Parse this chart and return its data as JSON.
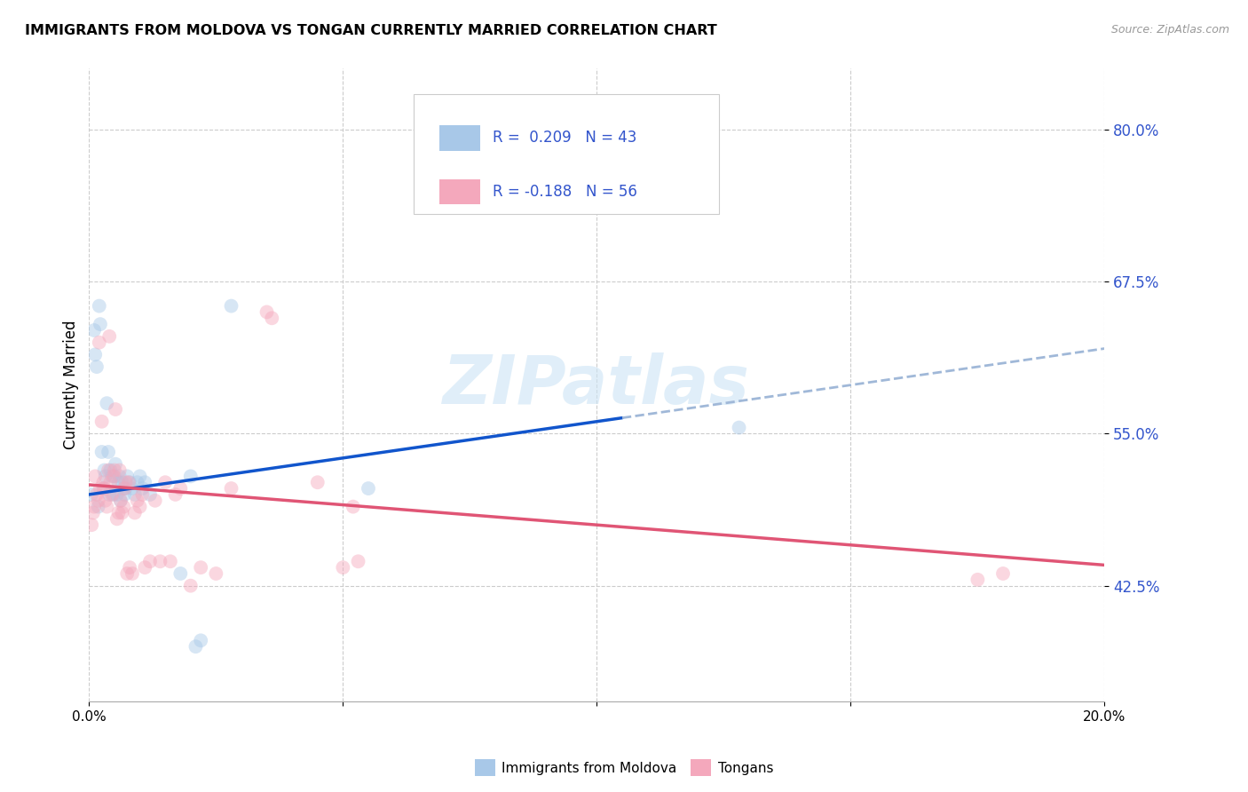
{
  "title": "IMMIGRANTS FROM MOLDOVA VS TONGAN CURRENTLY MARRIED CORRELATION CHART",
  "source": "Source: ZipAtlas.com",
  "ylabel": "Currently Married",
  "yticks": [
    42.5,
    55.0,
    67.5,
    80.0
  ],
  "ytick_labels": [
    "42.5%",
    "55.0%",
    "67.5%",
    "80.0%"
  ],
  "xmin": 0.0,
  "xmax": 20.0,
  "ymin": 33.0,
  "ymax": 85.0,
  "legend_label1": "Immigrants from Moldova",
  "legend_label2": "Tongans",
  "blue_color": "#A8C8E8",
  "pink_color": "#F4A8BC",
  "blue_line_color": "#1155CC",
  "pink_line_color": "#E05575",
  "dash_color": "#A0B8D8",
  "text_color": "#3355CC",
  "blue_scatter": [
    [
      0.05,
      50.0
    ],
    [
      0.1,
      63.5
    ],
    [
      0.12,
      61.5
    ],
    [
      0.15,
      60.5
    ],
    [
      0.18,
      49.0
    ],
    [
      0.2,
      65.5
    ],
    [
      0.22,
      64.0
    ],
    [
      0.25,
      53.5
    ],
    [
      0.28,
      50.5
    ],
    [
      0.3,
      52.0
    ],
    [
      0.32,
      51.5
    ],
    [
      0.35,
      57.5
    ],
    [
      0.38,
      53.5
    ],
    [
      0.4,
      50.0
    ],
    [
      0.42,
      52.0
    ],
    [
      0.45,
      51.5
    ],
    [
      0.48,
      50.0
    ],
    [
      0.5,
      51.5
    ],
    [
      0.52,
      52.5
    ],
    [
      0.55,
      50.0
    ],
    [
      0.58,
      51.0
    ],
    [
      0.6,
      51.5
    ],
    [
      0.62,
      49.5
    ],
    [
      0.65,
      51.0
    ],
    [
      0.68,
      50.5
    ],
    [
      0.7,
      50.0
    ],
    [
      0.72,
      50.5
    ],
    [
      0.75,
      51.5
    ],
    [
      0.8,
      51.0
    ],
    [
      0.85,
      50.5
    ],
    [
      0.9,
      50.0
    ],
    [
      0.95,
      51.0
    ],
    [
      1.0,
      51.5
    ],
    [
      1.05,
      50.5
    ],
    [
      1.1,
      51.0
    ],
    [
      1.2,
      50.0
    ],
    [
      1.8,
      43.5
    ],
    [
      2.0,
      51.5
    ],
    [
      2.1,
      37.5
    ],
    [
      2.2,
      38.0
    ],
    [
      2.8,
      65.5
    ],
    [
      5.5,
      50.5
    ],
    [
      12.8,
      55.5
    ]
  ],
  "pink_scatter": [
    [
      0.05,
      47.5
    ],
    [
      0.08,
      48.5
    ],
    [
      0.1,
      49.0
    ],
    [
      0.12,
      51.5
    ],
    [
      0.15,
      50.0
    ],
    [
      0.18,
      49.5
    ],
    [
      0.2,
      62.5
    ],
    [
      0.22,
      50.5
    ],
    [
      0.25,
      56.0
    ],
    [
      0.28,
      51.0
    ],
    [
      0.3,
      50.5
    ],
    [
      0.32,
      49.5
    ],
    [
      0.35,
      49.0
    ],
    [
      0.38,
      52.0
    ],
    [
      0.4,
      63.0
    ],
    [
      0.42,
      51.0
    ],
    [
      0.45,
      50.0
    ],
    [
      0.48,
      51.5
    ],
    [
      0.5,
      52.0
    ],
    [
      0.52,
      57.0
    ],
    [
      0.55,
      48.0
    ],
    [
      0.58,
      48.5
    ],
    [
      0.6,
      52.0
    ],
    [
      0.62,
      49.5
    ],
    [
      0.65,
      48.5
    ],
    [
      0.68,
      49.0
    ],
    [
      0.7,
      50.5
    ],
    [
      0.72,
      51.0
    ],
    [
      0.75,
      43.5
    ],
    [
      0.78,
      51.0
    ],
    [
      0.8,
      44.0
    ],
    [
      0.85,
      43.5
    ],
    [
      0.9,
      48.5
    ],
    [
      0.95,
      49.5
    ],
    [
      1.0,
      49.0
    ],
    [
      1.05,
      50.0
    ],
    [
      1.1,
      44.0
    ],
    [
      1.2,
      44.5
    ],
    [
      1.3,
      49.5
    ],
    [
      1.4,
      44.5
    ],
    [
      1.5,
      51.0
    ],
    [
      1.6,
      44.5
    ],
    [
      1.7,
      50.0
    ],
    [
      1.8,
      50.5
    ],
    [
      2.0,
      42.5
    ],
    [
      2.2,
      44.0
    ],
    [
      2.5,
      43.5
    ],
    [
      2.8,
      50.5
    ],
    [
      3.5,
      65.0
    ],
    [
      3.6,
      64.5
    ],
    [
      4.5,
      51.0
    ],
    [
      5.0,
      44.0
    ],
    [
      5.2,
      49.0
    ],
    [
      5.3,
      44.5
    ],
    [
      17.5,
      43.0
    ],
    [
      18.0,
      43.5
    ]
  ],
  "blue_trend_x0": 0.0,
  "blue_trend_x1": 20.0,
  "blue_trend_y0": 50.0,
  "blue_trend_y1": 62.0,
  "blue_solid_end": 10.5,
  "pink_trend_x0": 0.0,
  "pink_trend_x1": 20.0,
  "pink_trend_y0": 50.8,
  "pink_trend_y1": 44.2,
  "watermark": "ZIPatlas",
  "scatter_size": 130,
  "scatter_alpha": 0.45,
  "dpi": 100,
  "figsize": [
    14.06,
    8.92
  ]
}
